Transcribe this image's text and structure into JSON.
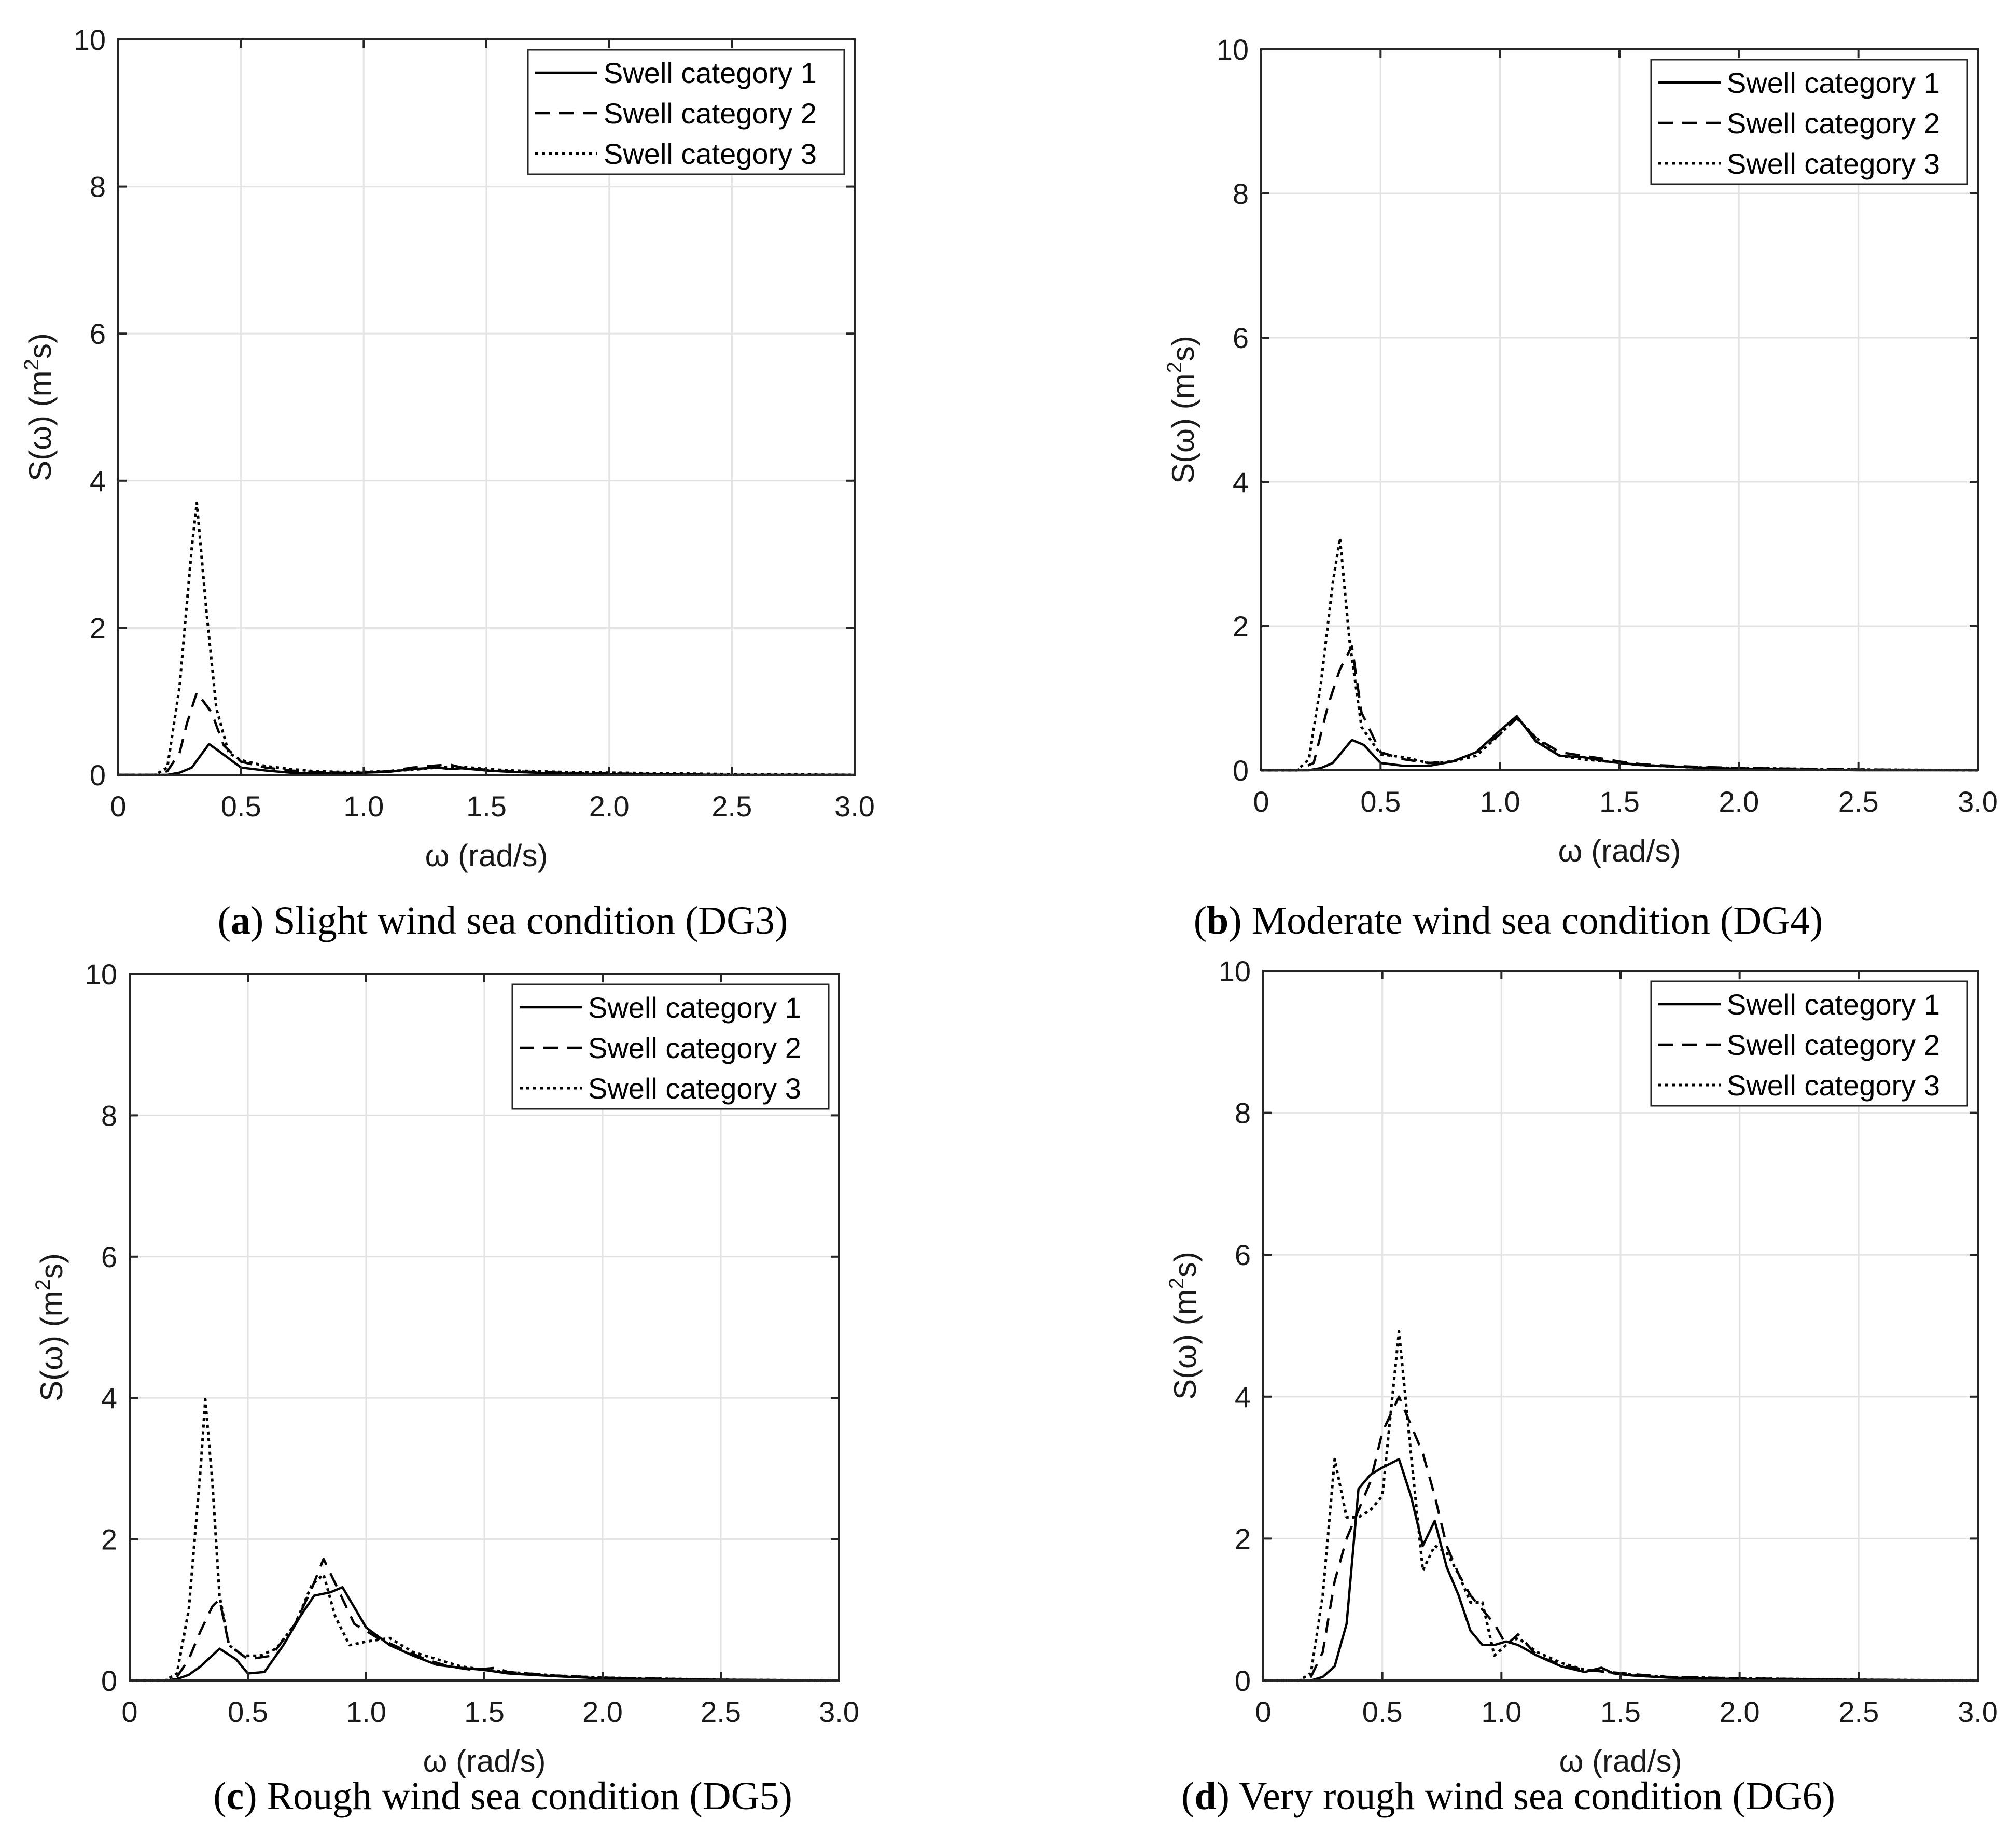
{
  "chart_data": [
    {
      "type": "line",
      "panel": "a",
      "caption_letter": "a",
      "caption_text": " Slight wind sea condition (DG3)",
      "title": "",
      "xlabel": "ω (rad/s)",
      "ylabel": "S(ω) (m2s)",
      "xlim": [
        0,
        3
      ],
      "ylim": [
        0,
        10
      ],
      "xticks": [
        "0",
        "0.5",
        "1.0",
        "1.5",
        "2.0",
        "2.5",
        "3.0"
      ],
      "yticks": [
        "0",
        "2",
        "4",
        "6",
        "8",
        "10"
      ],
      "grid": true,
      "legend_position": "top-right",
      "series": [
        {
          "name": "Swell category 1",
          "style": "solid",
          "x": [
            0,
            0.15,
            0.2,
            0.25,
            0.3,
            0.37,
            0.42,
            0.5,
            0.6,
            0.7,
            0.8,
            0.9,
            1.0,
            1.1,
            1.2,
            1.3,
            1.35,
            1.4,
            1.5,
            1.6,
            1.8,
            2.0,
            2.5,
            3.0
          ],
          "y": [
            0,
            0,
            0.0,
            0.03,
            0.1,
            0.42,
            0.3,
            0.1,
            0.06,
            0.03,
            0.02,
            0.02,
            0.03,
            0.04,
            0.08,
            0.1,
            0.08,
            0.09,
            0.06,
            0.04,
            0.02,
            0.01,
            0.0,
            0
          ]
        },
        {
          "name": "Swell category 2",
          "style": "dashed",
          "x": [
            0,
            0.15,
            0.2,
            0.25,
            0.28,
            0.32,
            0.38,
            0.43,
            0.5,
            0.6,
            0.7,
            0.8,
            0.9,
            1.0,
            1.1,
            1.2,
            1.3,
            1.35,
            1.4,
            1.5,
            1.6,
            1.8,
            2.0,
            2.5,
            3.0
          ],
          "y": [
            0,
            0,
            0.05,
            0.3,
            0.7,
            1.12,
            0.85,
            0.4,
            0.18,
            0.1,
            0.06,
            0.04,
            0.03,
            0.03,
            0.05,
            0.1,
            0.13,
            0.14,
            0.1,
            0.07,
            0.05,
            0.03,
            0.02,
            0.0,
            0
          ]
        },
        {
          "name": "Swell category 3",
          "style": "dotted",
          "x": [
            0,
            0.15,
            0.2,
            0.25,
            0.3,
            0.32,
            0.36,
            0.4,
            0.45,
            0.5,
            0.6,
            0.7,
            0.8,
            0.9,
            1.0,
            1.1,
            1.2,
            1.3,
            1.4,
            1.5,
            1.6,
            1.8,
            2.0,
            2.5,
            3.0
          ],
          "y": [
            0,
            0,
            0.1,
            1.2,
            3.1,
            3.7,
            2.2,
            0.9,
            0.3,
            0.2,
            0.12,
            0.08,
            0.05,
            0.04,
            0.04,
            0.05,
            0.07,
            0.1,
            0.11,
            0.08,
            0.06,
            0.04,
            0.03,
            0.01,
            0
          ]
        }
      ]
    },
    {
      "type": "line",
      "panel": "b",
      "caption_letter": "b",
      "caption_text": " Moderate wind sea condition (DG4)",
      "title": "",
      "xlabel": "ω (rad/s)",
      "ylabel": "S(ω) (m2s)",
      "xlim": [
        0,
        3
      ],
      "ylim": [
        0,
        10
      ],
      "xticks": [
        "0",
        "0.5",
        "1.0",
        "1.5",
        "2.0",
        "2.5",
        "3.0"
      ],
      "yticks": [
        "0",
        "2",
        "4",
        "6",
        "8",
        "10"
      ],
      "grid": true,
      "legend_position": "top-right",
      "series": [
        {
          "name": "Swell category 1",
          "style": "solid",
          "x": [
            0,
            0.15,
            0.2,
            0.25,
            0.3,
            0.38,
            0.43,
            0.5,
            0.6,
            0.7,
            0.8,
            0.9,
            1.0,
            1.07,
            1.15,
            1.25,
            1.35,
            1.45,
            1.5,
            1.6,
            1.8,
            2.0,
            2.5,
            3.0
          ],
          "y": [
            0,
            0,
            0.0,
            0.03,
            0.1,
            0.42,
            0.35,
            0.1,
            0.06,
            0.06,
            0.12,
            0.25,
            0.55,
            0.75,
            0.4,
            0.2,
            0.18,
            0.12,
            0.1,
            0.07,
            0.04,
            0.02,
            0.0,
            0
          ]
        },
        {
          "name": "Swell category 2",
          "style": "dashed",
          "x": [
            0,
            0.15,
            0.22,
            0.28,
            0.33,
            0.38,
            0.42,
            0.5,
            0.6,
            0.7,
            0.8,
            0.9,
            1.0,
            1.07,
            1.15,
            1.25,
            1.35,
            1.45,
            1.5,
            1.6,
            1.8,
            2.0,
            2.5,
            3.0
          ],
          "y": [
            0,
            0,
            0.1,
            0.9,
            1.4,
            1.72,
            0.8,
            0.25,
            0.15,
            0.1,
            0.12,
            0.25,
            0.5,
            0.72,
            0.45,
            0.25,
            0.2,
            0.15,
            0.12,
            0.08,
            0.05,
            0.03,
            0.01,
            0
          ]
        },
        {
          "name": "Swell category 3",
          "style": "dotted",
          "x": [
            0,
            0.15,
            0.2,
            0.25,
            0.3,
            0.33,
            0.37,
            0.42,
            0.5,
            0.6,
            0.7,
            0.8,
            0.9,
            1.0,
            1.07,
            1.15,
            1.25,
            1.35,
            1.45,
            1.5,
            1.6,
            1.8,
            2.0,
            2.5,
            3.0
          ],
          "y": [
            0,
            0,
            0.15,
            1.2,
            2.6,
            3.22,
            1.8,
            0.6,
            0.22,
            0.18,
            0.1,
            0.12,
            0.2,
            0.5,
            0.73,
            0.45,
            0.2,
            0.15,
            0.12,
            0.1,
            0.07,
            0.04,
            0.03,
            0.01,
            0
          ]
        }
      ]
    },
    {
      "type": "line",
      "panel": "c",
      "caption_letter": "c",
      "caption_text": " Rough wind sea condition (DG5)",
      "title": "",
      "xlabel": "ω (rad/s)",
      "ylabel": "S(ω) (m2s)",
      "xlim": [
        0,
        3
      ],
      "ylim": [
        0,
        10
      ],
      "xticks": [
        "0",
        "0.5",
        "1.0",
        "1.5",
        "2.0",
        "2.5",
        "3.0"
      ],
      "yticks": [
        "0",
        "2",
        "4",
        "6",
        "8",
        "10"
      ],
      "grid": true,
      "legend_position": "top-right",
      "series": [
        {
          "name": "Swell category 1",
          "style": "solid",
          "x": [
            0,
            0.15,
            0.2,
            0.25,
            0.3,
            0.38,
            0.45,
            0.5,
            0.57,
            0.65,
            0.72,
            0.78,
            0.85,
            0.9,
            1.0,
            1.1,
            1.2,
            1.3,
            1.4,
            1.5,
            1.6,
            1.8,
            2.0,
            2.5,
            3.0
          ],
          "y": [
            0,
            0,
            0.02,
            0.08,
            0.2,
            0.45,
            0.3,
            0.1,
            0.12,
            0.5,
            0.9,
            1.2,
            1.25,
            1.32,
            0.75,
            0.5,
            0.35,
            0.22,
            0.18,
            0.15,
            0.1,
            0.06,
            0.03,
            0.01,
            0
          ]
        },
        {
          "name": "Swell category 2",
          "style": "dashed",
          "x": [
            0,
            0.15,
            0.2,
            0.25,
            0.3,
            0.35,
            0.38,
            0.42,
            0.5,
            0.6,
            0.7,
            0.77,
            0.82,
            0.88,
            0.95,
            1.05,
            1.15,
            1.25,
            1.35,
            1.45,
            1.55,
            1.6,
            1.8,
            2.0,
            2.5,
            3.0
          ],
          "y": [
            0,
            0,
            0.05,
            0.3,
            0.7,
            1.05,
            1.15,
            0.5,
            0.3,
            0.35,
            0.8,
            1.3,
            1.72,
            1.3,
            0.8,
            0.6,
            0.45,
            0.3,
            0.2,
            0.15,
            0.18,
            0.12,
            0.07,
            0.04,
            0.01,
            0
          ]
        },
        {
          "name": "Swell category 3",
          "style": "dotted",
          "x": [
            0,
            0.15,
            0.2,
            0.25,
            0.3,
            0.32,
            0.35,
            0.38,
            0.42,
            0.48,
            0.55,
            0.62,
            0.7,
            0.77,
            0.82,
            0.87,
            0.93,
            1.0,
            1.1,
            1.2,
            1.3,
            1.4,
            1.5,
            1.6,
            1.8,
            2.0,
            2.5,
            3.0
          ],
          "y": [
            0,
            0,
            0.1,
            1.0,
            3.0,
            3.98,
            2.8,
            1.2,
            0.5,
            0.35,
            0.35,
            0.45,
            0.8,
            1.35,
            1.5,
            0.9,
            0.5,
            0.55,
            0.6,
            0.4,
            0.3,
            0.2,
            0.15,
            0.12,
            0.07,
            0.04,
            0.01,
            0
          ]
        }
      ]
    },
    {
      "type": "line",
      "panel": "d",
      "caption_letter": "d",
      "caption_text": " Very rough wind sea condition (DG6)",
      "title": "",
      "xlabel": "ω (rad/s)",
      "ylabel": "S(ω) (m2s)",
      "xlim": [
        0,
        3
      ],
      "ylim": [
        0,
        10
      ],
      "xticks": [
        "0",
        "0.5",
        "1.0",
        "1.5",
        "2.0",
        "2.5",
        "3.0"
      ],
      "yticks": [
        "0",
        "2",
        "4",
        "6",
        "8",
        "10"
      ],
      "grid": true,
      "legend_position": "top-right",
      "series": [
        {
          "name": "Swell category 1",
          "style": "solid",
          "x": [
            0,
            0.15,
            0.2,
            0.25,
            0.3,
            0.35,
            0.4,
            0.45,
            0.5,
            0.57,
            0.62,
            0.67,
            0.72,
            0.77,
            0.82,
            0.87,
            0.92,
            0.97,
            1.02,
            1.07,
            1.15,
            1.25,
            1.35,
            1.42,
            1.47,
            1.55,
            1.7,
            2.0,
            2.5,
            3.0
          ],
          "y": [
            0,
            0,
            0.0,
            0.05,
            0.2,
            0.8,
            2.7,
            2.9,
            3.0,
            3.12,
            2.6,
            1.9,
            2.25,
            1.6,
            1.2,
            0.7,
            0.5,
            0.5,
            0.55,
            0.5,
            0.35,
            0.2,
            0.12,
            0.18,
            0.1,
            0.07,
            0.04,
            0.02,
            0.01,
            0
          ]
        },
        {
          "name": "Swell category 2",
          "style": "dashed",
          "x": [
            0,
            0.15,
            0.2,
            0.25,
            0.3,
            0.35,
            0.4,
            0.45,
            0.5,
            0.57,
            0.62,
            0.67,
            0.72,
            0.77,
            0.82,
            0.87,
            0.92,
            0.97,
            1.02,
            1.07,
            1.15,
            1.25,
            1.35,
            1.45,
            1.55,
            1.7,
            2.0,
            2.5,
            3.0
          ],
          "y": [
            0,
            0,
            0.05,
            0.4,
            1.4,
            2.0,
            2.4,
            2.8,
            3.5,
            4.0,
            3.6,
            3.2,
            2.6,
            1.9,
            1.5,
            1.2,
            1.0,
            0.8,
            0.5,
            0.65,
            0.35,
            0.22,
            0.15,
            0.12,
            0.09,
            0.05,
            0.03,
            0.01,
            0
          ]
        },
        {
          "name": "Swell category 3",
          "style": "dotted",
          "x": [
            0,
            0.15,
            0.2,
            0.25,
            0.3,
            0.35,
            0.4,
            0.45,
            0.5,
            0.57,
            0.62,
            0.67,
            0.72,
            0.77,
            0.82,
            0.87,
            0.92,
            0.97,
            1.02,
            1.07,
            1.15,
            1.25,
            1.35,
            1.45,
            1.55,
            1.7,
            2.0,
            2.5,
            3.0
          ],
          "y": [
            0,
            0,
            0.1,
            1.2,
            3.12,
            2.3,
            2.3,
            2.4,
            2.6,
            4.92,
            3.2,
            1.55,
            1.9,
            1.8,
            1.5,
            1.1,
            1.1,
            0.35,
            0.5,
            0.6,
            0.4,
            0.25,
            0.15,
            0.12,
            0.08,
            0.05,
            0.03,
            0.01,
            0
          ]
        }
      ]
    }
  ]
}
